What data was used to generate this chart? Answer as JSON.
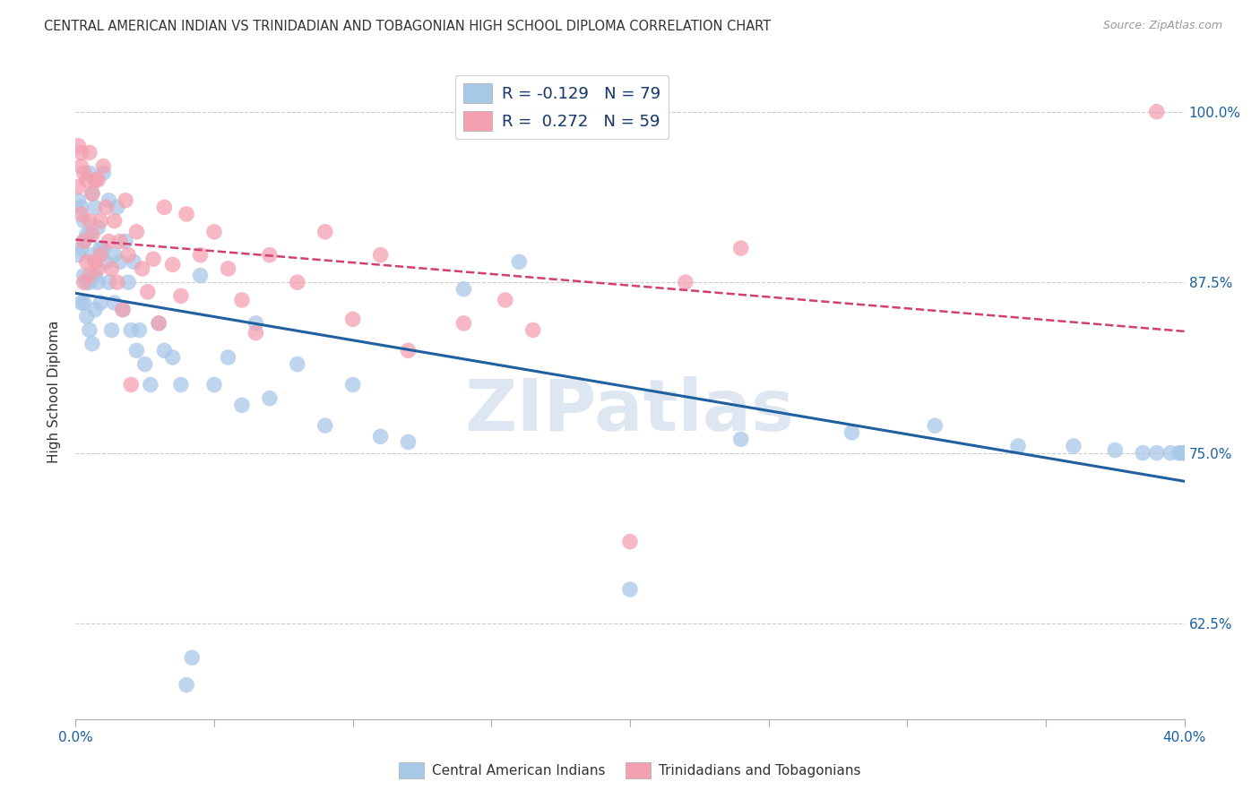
{
  "title": "CENTRAL AMERICAN INDIAN VS TRINIDADIAN AND TOBAGONIAN HIGH SCHOOL DIPLOMA CORRELATION CHART",
  "source": "Source: ZipAtlas.com",
  "ylabel": "High School Diploma",
  "blue_color": "#a8c8e8",
  "pink_color": "#f4a0b0",
  "trendline_blue": "#2060a0",
  "trendline_pink": "#d04070",
  "watermark_color": "#c8d8e8",
  "blue_n": 79,
  "pink_n": 59,
  "xmin": 0.0,
  "xmax": 0.4,
  "ymin": 0.555,
  "ymax": 1.035,
  "yticks": [
    0.625,
    0.75,
    0.875,
    1.0
  ],
  "ytick_labels": [
    "62.5%",
    "75.0%",
    "87.5%",
    "100.0%"
  ],
  "blue_x": [
    0.001,
    0.001,
    0.002,
    0.002,
    0.002,
    0.003,
    0.003,
    0.003,
    0.003,
    0.004,
    0.004,
    0.004,
    0.005,
    0.005,
    0.005,
    0.005,
    0.006,
    0.006,
    0.006,
    0.007,
    0.007,
    0.007,
    0.008,
    0.008,
    0.009,
    0.009,
    0.01,
    0.01,
    0.011,
    0.012,
    0.012,
    0.013,
    0.014,
    0.014,
    0.015,
    0.016,
    0.017,
    0.018,
    0.019,
    0.02,
    0.021,
    0.022,
    0.023,
    0.025,
    0.027,
    0.03,
    0.032,
    0.035,
    0.038,
    0.04,
    0.042,
    0.045,
    0.05,
    0.055,
    0.06,
    0.065,
    0.07,
    0.08,
    0.09,
    0.1,
    0.11,
    0.12,
    0.14,
    0.16,
    0.2,
    0.24,
    0.28,
    0.31,
    0.34,
    0.36,
    0.375,
    0.385,
    0.39,
    0.395,
    0.398,
    0.399,
    0.4,
    0.4,
    0.4
  ],
  "blue_y": [
    0.935,
    0.895,
    0.9,
    0.86,
    0.93,
    0.88,
    0.92,
    0.86,
    0.905,
    0.875,
    0.91,
    0.85,
    0.955,
    0.91,
    0.875,
    0.84,
    0.94,
    0.895,
    0.83,
    0.93,
    0.88,
    0.855,
    0.915,
    0.875,
    0.9,
    0.86,
    0.955,
    0.9,
    0.89,
    0.875,
    0.935,
    0.84,
    0.895,
    0.86,
    0.93,
    0.89,
    0.855,
    0.905,
    0.875,
    0.84,
    0.89,
    0.825,
    0.84,
    0.815,
    0.8,
    0.845,
    0.825,
    0.82,
    0.8,
    0.58,
    0.6,
    0.88,
    0.8,
    0.82,
    0.785,
    0.845,
    0.79,
    0.815,
    0.77,
    0.8,
    0.762,
    0.758,
    0.87,
    0.89,
    0.65,
    0.76,
    0.765,
    0.77,
    0.755,
    0.755,
    0.752,
    0.75,
    0.75,
    0.75,
    0.75,
    0.75,
    0.75,
    0.75,
    0.75
  ],
  "pink_x": [
    0.001,
    0.001,
    0.002,
    0.002,
    0.002,
    0.003,
    0.003,
    0.003,
    0.004,
    0.004,
    0.005,
    0.005,
    0.005,
    0.006,
    0.006,
    0.007,
    0.007,
    0.008,
    0.008,
    0.009,
    0.009,
    0.01,
    0.011,
    0.012,
    0.013,
    0.014,
    0.015,
    0.016,
    0.017,
    0.018,
    0.019,
    0.02,
    0.022,
    0.024,
    0.026,
    0.028,
    0.03,
    0.032,
    0.035,
    0.038,
    0.04,
    0.045,
    0.05,
    0.055,
    0.06,
    0.065,
    0.07,
    0.08,
    0.09,
    0.1,
    0.11,
    0.12,
    0.14,
    0.155,
    0.165,
    0.2,
    0.22,
    0.24,
    0.39
  ],
  "pink_y": [
    0.945,
    0.975,
    0.97,
    0.925,
    0.96,
    0.955,
    0.905,
    0.875,
    0.95,
    0.89,
    0.97,
    0.92,
    0.88,
    0.94,
    0.91,
    0.95,
    0.89,
    0.95,
    0.885,
    0.92,
    0.895,
    0.96,
    0.93,
    0.905,
    0.885,
    0.92,
    0.875,
    0.905,
    0.855,
    0.935,
    0.895,
    0.8,
    0.912,
    0.885,
    0.868,
    0.892,
    0.845,
    0.93,
    0.888,
    0.865,
    0.925,
    0.895,
    0.912,
    0.885,
    0.862,
    0.838,
    0.895,
    0.875,
    0.912,
    0.848,
    0.895,
    0.825,
    0.845,
    0.862,
    0.84,
    0.685,
    0.875,
    0.9,
    1.0
  ]
}
